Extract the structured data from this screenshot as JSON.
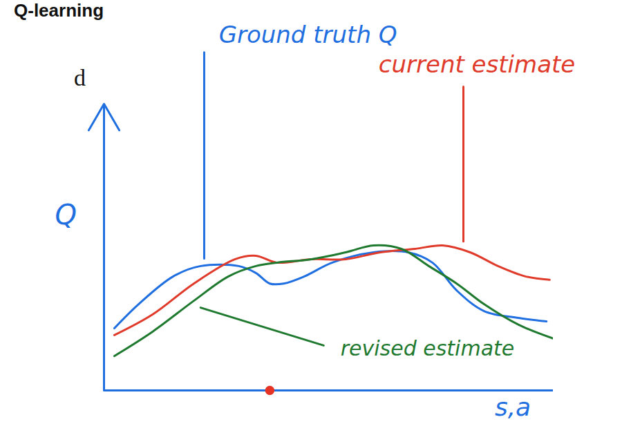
{
  "chart_data": {
    "type": "line",
    "title": "Q-learning",
    "x_label": "s,a",
    "y_label": "Q",
    "xlim": [
      0,
      10
    ],
    "ylim": [
      0,
      10
    ],
    "tick_labels": false,
    "grid": false,
    "annotations": [
      "d"
    ],
    "series": [
      {
        "name": "Ground truth Q",
        "color": "#1f6fe0",
        "x": [
          0.23,
          0.77,
          1.54,
          2.15,
          3.0,
          3.38,
          3.69,
          4.0,
          4.46,
          5.08,
          6.0,
          6.77,
          7.31,
          7.85,
          8.46,
          9.23,
          9.85
        ],
        "values": [
          2.17,
          3.01,
          3.98,
          4.34,
          4.34,
          4.1,
          3.73,
          3.73,
          3.98,
          4.46,
          4.82,
          4.82,
          4.46,
          3.49,
          2.77,
          2.53,
          2.41
        ]
      },
      {
        "name": "current estimate",
        "color": "#e03a2a",
        "x": [
          0.23,
          1.08,
          2.0,
          2.92,
          3.38,
          3.85,
          4.62,
          5.38,
          6.15,
          6.92,
          7.54,
          8.15,
          8.77,
          9.38,
          9.92
        ],
        "values": [
          1.93,
          2.65,
          3.73,
          4.58,
          4.7,
          4.46,
          4.58,
          4.58,
          4.82,
          4.94,
          5.06,
          4.82,
          4.34,
          3.98,
          3.86
        ]
      },
      {
        "name": "revised estimate",
        "color": "#1f7a30",
        "x": [
          0.23,
          1.08,
          2.0,
          2.77,
          3.38,
          3.85,
          4.62,
          5.38,
          6.0,
          6.62,
          7.23,
          7.85,
          8.46,
          9.23,
          10.0
        ],
        "values": [
          1.2,
          2.05,
          3.13,
          3.98,
          4.34,
          4.46,
          4.58,
          4.82,
          5.06,
          4.94,
          4.34,
          3.73,
          3.01,
          2.29,
          1.81
        ]
      },
      {
        "type": "scatter",
        "color": "#e53325",
        "x": [
          3.69
        ],
        "values": [
          0
        ]
      }
    ]
  }
}
